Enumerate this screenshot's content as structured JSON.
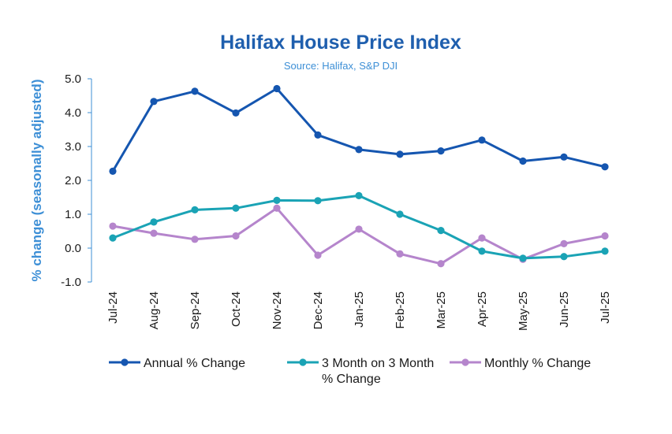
{
  "colors": {
    "title": "#1f5fae",
    "subtitle": "#3d8fd6",
    "axis": "#3d8fd6",
    "annual": "#1556b0",
    "three_month": "#1aa3b5",
    "monthly": "#b585cc"
  },
  "chart_data": {
    "type": "line",
    "title": "Halifax House Price Index",
    "subtitle": "Source: Halifax, S&P DJI",
    "xlabel": "",
    "ylabel": "% change (seasonally adjusted)",
    "ylim": [
      -1.0,
      5.0
    ],
    "yticks": [
      "5.0",
      "4.0",
      "3.0",
      "2.0",
      "1.0",
      "0.0",
      "-1.0"
    ],
    "ytick_values": [
      5,
      4,
      3,
      2,
      1,
      0,
      -1
    ],
    "grid": false,
    "legend_position": "bottom",
    "categories": [
      "Jul-24",
      "Aug-24",
      "Sep-24",
      "Oct-24",
      "Nov-24",
      "Dec-24",
      "Jan-25",
      "Feb-25",
      "Mar-25",
      "Apr-25",
      "May-25",
      "Jun-25",
      "Jul-25"
    ],
    "series": [
      {
        "key": "annual",
        "name": "Annual % Change",
        "legend_lines": [
          "Annual % Change"
        ],
        "values": [
          2.27,
          4.33,
          4.63,
          3.99,
          4.71,
          3.34,
          2.91,
          2.77,
          2.87,
          3.19,
          2.57,
          2.69,
          2.4
        ]
      },
      {
        "key": "three_month",
        "name": "3 Month on 3 Month % Change",
        "legend_lines": [
          "3 Month on 3 Month",
          "% Change"
        ],
        "values": [
          0.3,
          0.77,
          1.13,
          1.18,
          1.41,
          1.4,
          1.55,
          1.0,
          0.52,
          -0.09,
          -0.3,
          -0.25,
          -0.09
        ]
      },
      {
        "key": "monthly",
        "name": "Monthly % Change",
        "legend_lines": [
          "Monthly % Change"
        ],
        "values": [
          0.65,
          0.44,
          0.26,
          0.36,
          1.18,
          -0.21,
          0.56,
          -0.17,
          -0.46,
          0.3,
          -0.33,
          0.13,
          0.36
        ]
      }
    ]
  }
}
